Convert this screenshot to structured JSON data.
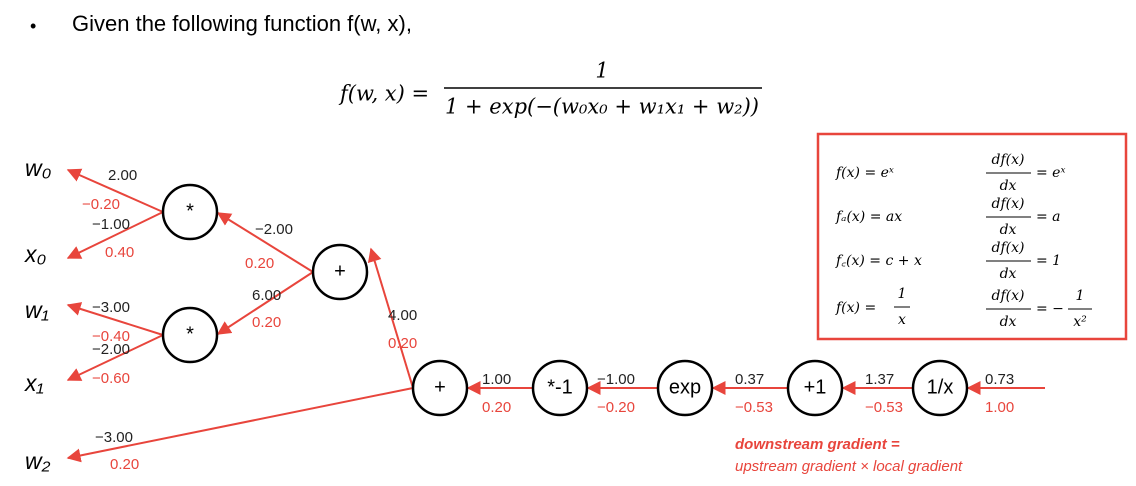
{
  "header": {
    "bullet": "•",
    "text": "Given the following function f(w, x),"
  },
  "formula": {
    "lhs": "f(w, x) =",
    "numerator": "1",
    "denominator": "1 + exp(−(w₀x₀ + w₁x₁ + w₂))"
  },
  "inputs": [
    "w₀",
    "x₀",
    "w₁",
    "x₁",
    "w₂"
  ],
  "nodes": [
    "*",
    "*",
    "+",
    "+",
    "*-1",
    "exp",
    "+1",
    "1/x"
  ],
  "edges": [
    {
      "value": "2.00",
      "gradient": "−0.20"
    },
    {
      "value": "−1.00",
      "gradient": "0.40"
    },
    {
      "value": "−3.00",
      "gradient": "−0.40"
    },
    {
      "value": "−2.00",
      "gradient": "−0.60"
    },
    {
      "value": "−2.00",
      "gradient": "0.20"
    },
    {
      "value": "6.00",
      "gradient": "0.20"
    },
    {
      "value": "4.00",
      "gradient": "0.20"
    },
    {
      "value": "−3.00",
      "gradient": "0.20"
    },
    {
      "value": "1.00",
      "gradient": "0.20"
    },
    {
      "value": "−1.00",
      "gradient": "−0.20"
    },
    {
      "value": "0.37",
      "gradient": "−0.53"
    },
    {
      "value": "1.37",
      "gradient": "−0.53"
    },
    {
      "value": "0.73",
      "gradient": "1.00"
    }
  ],
  "derivatives": [
    {
      "lhs": "f(x) = eˣ",
      "num": "df(x)",
      "den": "dx",
      "rhs": "= eˣ"
    },
    {
      "lhs": "fₐ(x) = ax",
      "num": "df(x)",
      "den": "dx",
      "rhs": "= a"
    },
    {
      "lhs": "f꜀(x) = c + x",
      "num": "df(x)",
      "den": "dx",
      "rhs": "= 1"
    },
    {
      "lhs": "f(x) =",
      "lhs_num": "1",
      "lhs_den": "x",
      "num": "df(x)",
      "den": "dx",
      "rhs": "= −",
      "rhs_num": "1",
      "rhs_den": "x²"
    }
  ],
  "caption": {
    "line1": "downstream gradient =",
    "line2": "upstream gradient × local gradient"
  }
}
